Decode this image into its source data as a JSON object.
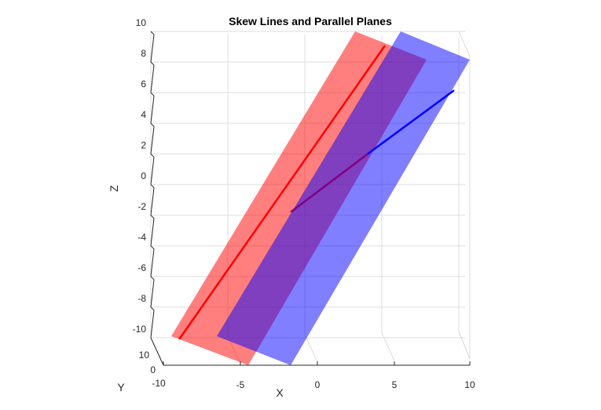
{
  "chart_data": {
    "type": "3d-line-plane",
    "title": "Skew Lines and Parallel Planes",
    "xlabel": "X",
    "ylabel": "Y",
    "zlabel": "Z",
    "xlim": [
      -10,
      10
    ],
    "ylim": [
      0,
      10
    ],
    "zlim": [
      -10,
      10
    ],
    "xticks": [
      "-10",
      "-5",
      "0",
      "5",
      "10"
    ],
    "yticks": [
      "0",
      "10"
    ],
    "zticks": [
      "10",
      "8",
      "6",
      "4",
      "2",
      "0",
      "-2",
      "-4",
      "-6",
      "-8",
      "-10"
    ],
    "grid": true,
    "colors": {
      "red_plane": "#ff0000",
      "blue_plane": "#0000ff",
      "red_line": "#ff0000",
      "blue_line": "#0000ff",
      "overlap_line": "#800080"
    }
  }
}
